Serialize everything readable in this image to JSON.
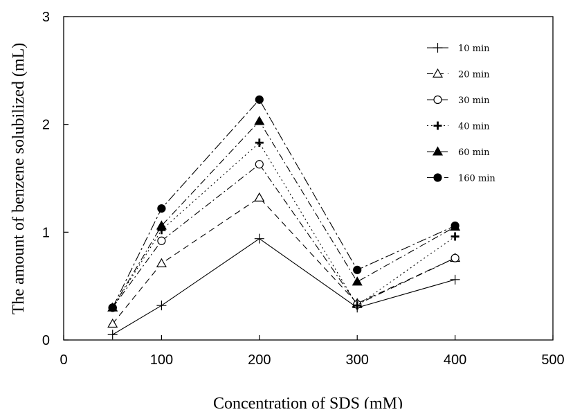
{
  "chart_data": {
    "type": "line",
    "title": "",
    "xlabel": "Concentration of SDS (mM)",
    "ylabel": "The amount of benzene solubilized (mL)",
    "xlim": [
      0,
      500
    ],
    "ylim": [
      0,
      3
    ],
    "xticks": [
      "0",
      "100",
      "200",
      "300",
      "400",
      "500"
    ],
    "yticks": [
      "0",
      "1",
      "2",
      "3"
    ],
    "grid": false,
    "legend_position": "top-right",
    "x": [
      50,
      100,
      200,
      300,
      400
    ],
    "series": [
      {
        "name": "10 min",
        "marker": "plus-thin",
        "dash": "solid",
        "values": [
          0.05,
          0.32,
          0.94,
          0.3,
          0.56
        ]
      },
      {
        "name": "20 min",
        "marker": "triangle-open",
        "dash": "dashed",
        "values": [
          0.15,
          0.71,
          1.32,
          0.34,
          0.76
        ]
      },
      {
        "name": "30 min",
        "marker": "circle-open",
        "dash": "dash-dot",
        "values": [
          0.3,
          0.92,
          1.63,
          0.33,
          0.76
        ]
      },
      {
        "name": "40 min",
        "marker": "plus-bold",
        "dash": "dotted",
        "values": [
          0.3,
          1.02,
          1.83,
          0.32,
          0.96
        ]
      },
      {
        "name": "60 min",
        "marker": "triangle-filled",
        "dash": "dash-dot",
        "values": [
          0.3,
          1.06,
          2.03,
          0.54,
          1.05
        ]
      },
      {
        "name": "160 min",
        "marker": "circle-filled",
        "dash": "dash-dot-long",
        "values": [
          0.3,
          1.22,
          2.23,
          0.65,
          1.06
        ]
      }
    ]
  }
}
